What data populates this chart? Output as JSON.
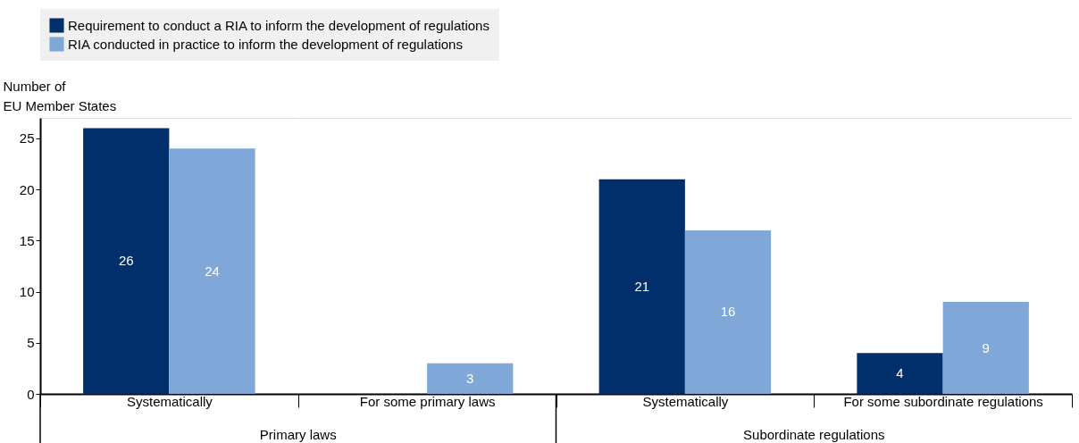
{
  "chart_data": {
    "type": "bar",
    "ylabel": "Number of\nEU Member States",
    "categories": [
      "Systematically",
      "For some primary laws",
      "Systematically",
      "For some subordinate regulations"
    ],
    "series": [
      {
        "name": "Requirement to conduct a RIA to inform the development of regulations",
        "color": "#002f6c",
        "values": [
          26,
          null,
          21,
          4
        ]
      },
      {
        "name": "RIA conducted in practice to inform the development of regulations",
        "color": "#7fa8d9",
        "values": [
          24,
          3,
          16,
          9
        ]
      }
    ],
    "annotations": [
      "Primary laws",
      "Subordinate regulations"
    ],
    "ylim": [
      0,
      27
    ],
    "yticks": [
      0,
      5,
      10,
      15,
      20,
      25
    ],
    "grid": true,
    "legend": "top",
    "data_labels": true
  }
}
